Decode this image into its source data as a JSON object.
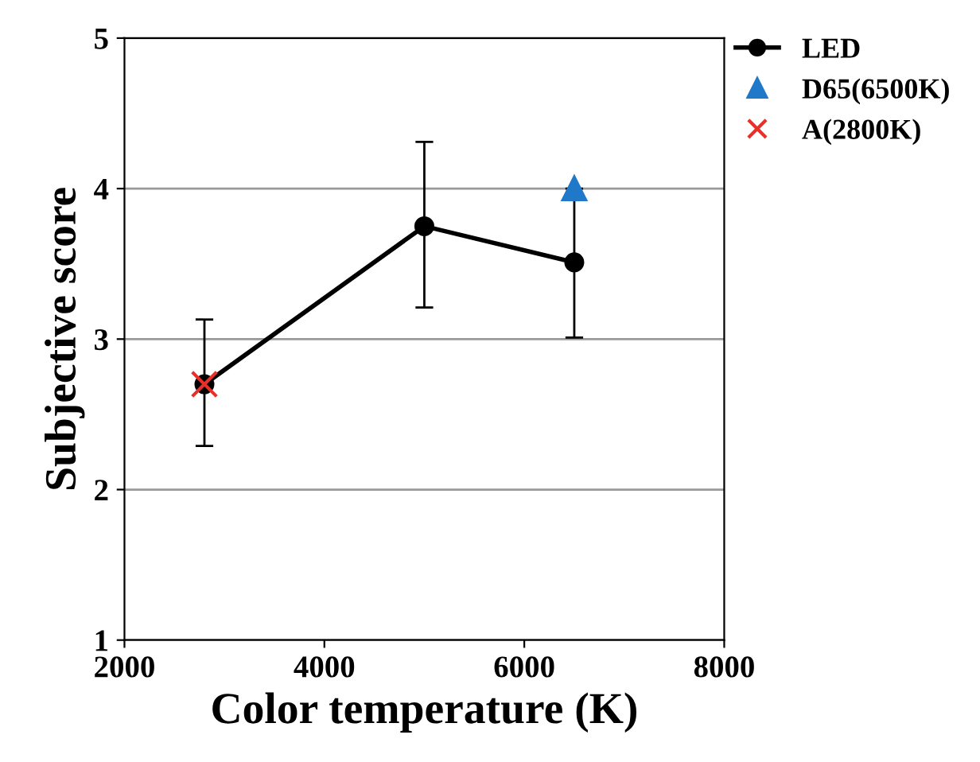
{
  "chart_data": {
    "type": "line",
    "xlabel": "Color temperature (K)",
    "ylabel": "Subjective score",
    "xlim": [
      2000,
      8000
    ],
    "xticks": [
      2000,
      4000,
      6000,
      8000
    ],
    "ylim": [
      1,
      5
    ],
    "yticks": [
      1,
      2,
      3,
      4,
      5
    ],
    "grid": "y",
    "legend": "right",
    "series": [
      {
        "name": "LED",
        "color": "#000000",
        "marker": "circle",
        "x": [
          2800,
          5000,
          6500
        ],
        "values": [
          2.7,
          3.75,
          3.51
        ],
        "errors": [
          [
            2.29,
            3.13
          ],
          [
            3.21,
            4.31
          ],
          [
            3.01,
            4.0
          ]
        ]
      },
      {
        "name": "D65(6500K)",
        "type": "scatter",
        "color": "#1f78c8",
        "marker": "triangle",
        "x": [
          6500
        ],
        "values": [
          4.0
        ]
      },
      {
        "name": "A(2800K)",
        "type": "scatter",
        "color": "#e8302a",
        "marker": "cross",
        "x": [
          2800
        ],
        "values": [
          2.7
        ]
      }
    ]
  }
}
